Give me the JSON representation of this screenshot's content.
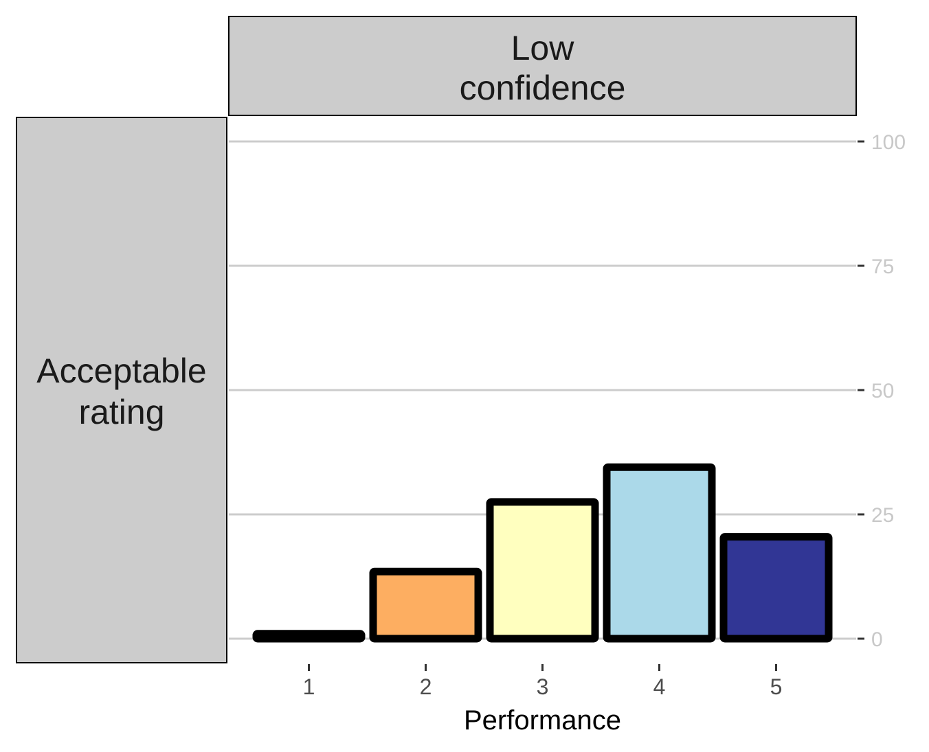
{
  "chart_data": {
    "type": "bar",
    "facet_col_label": [
      "Low",
      "confidence"
    ],
    "facet_row_label": [
      "Acceptable",
      "rating"
    ],
    "xlabel": "Performance",
    "ylabel": "",
    "categories": [
      "1",
      "2",
      "3",
      "4",
      "5"
    ],
    "values": [
      1,
      13.5,
      27.5,
      34.5,
      20.5
    ],
    "ylim": [
      0,
      100
    ],
    "yticks": [
      "0",
      "25",
      "50",
      "75",
      "100"
    ],
    "y_axis_position": "right",
    "grid": "horizontal major",
    "legend": "none",
    "bar_colors": [
      "#A50026",
      "#FDAE61",
      "#FFFFBF",
      "#ABD9E9",
      "#313695"
    ],
    "bar_outline_color": "#000000",
    "strip_fill": "#cccccc",
    "grid_color": "#cccccc"
  }
}
